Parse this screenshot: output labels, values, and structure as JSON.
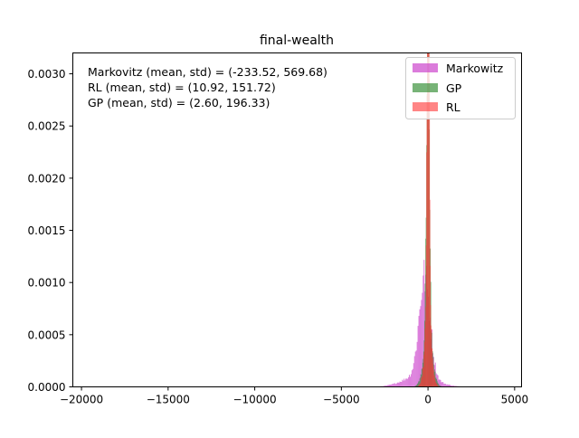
{
  "chart_data": {
    "type": "histogram",
    "title": "final-wealth",
    "xlabel": "",
    "ylabel": "",
    "xlim": [
      -20500,
      5400
    ],
    "ylim": [
      0,
      0.0032
    ],
    "x_ticks": [
      -20000,
      -15000,
      -10000,
      -5000,
      0,
      5000
    ],
    "x_tick_labels": [
      "−20000",
      "−15000",
      "−10000",
      "−5000",
      "0",
      "5000"
    ],
    "y_ticks": [
      0,
      0.0005,
      0.001,
      0.0015,
      0.002,
      0.0025,
      0.003
    ],
    "y_tick_labels": [
      "0.0000",
      "0.0005",
      "0.0010",
      "0.0015",
      "0.0020",
      "0.0025",
      "0.0030"
    ],
    "grid": false,
    "legend_position": "top-right",
    "annotations": [
      "Markovitz (mean, std) = (-233.52, 569.68)",
      "RL (mean, std) = (10.92, 151.72)",
      "GP (mean, std) = (2.60, 196.33)"
    ],
    "series": [
      {
        "name": "Markowitz",
        "color": "#cc44cc",
        "opacity": 0.7,
        "mean": -233.52,
        "std": 569.68,
        "bin_width": 50,
        "range": [
          -19800,
          4500
        ]
      },
      {
        "name": "GP",
        "color": "#2e8b2e",
        "opacity": 0.65,
        "mean": 2.6,
        "std": 196.33,
        "bin_width": 28,
        "range": [
          -1500,
          1500
        ]
      },
      {
        "name": "RL",
        "color": "#ff3333",
        "opacity": 0.6,
        "mean": 10.92,
        "std": 151.72,
        "bin_width": 22,
        "range": [
          -1200,
          1200
        ]
      }
    ]
  }
}
